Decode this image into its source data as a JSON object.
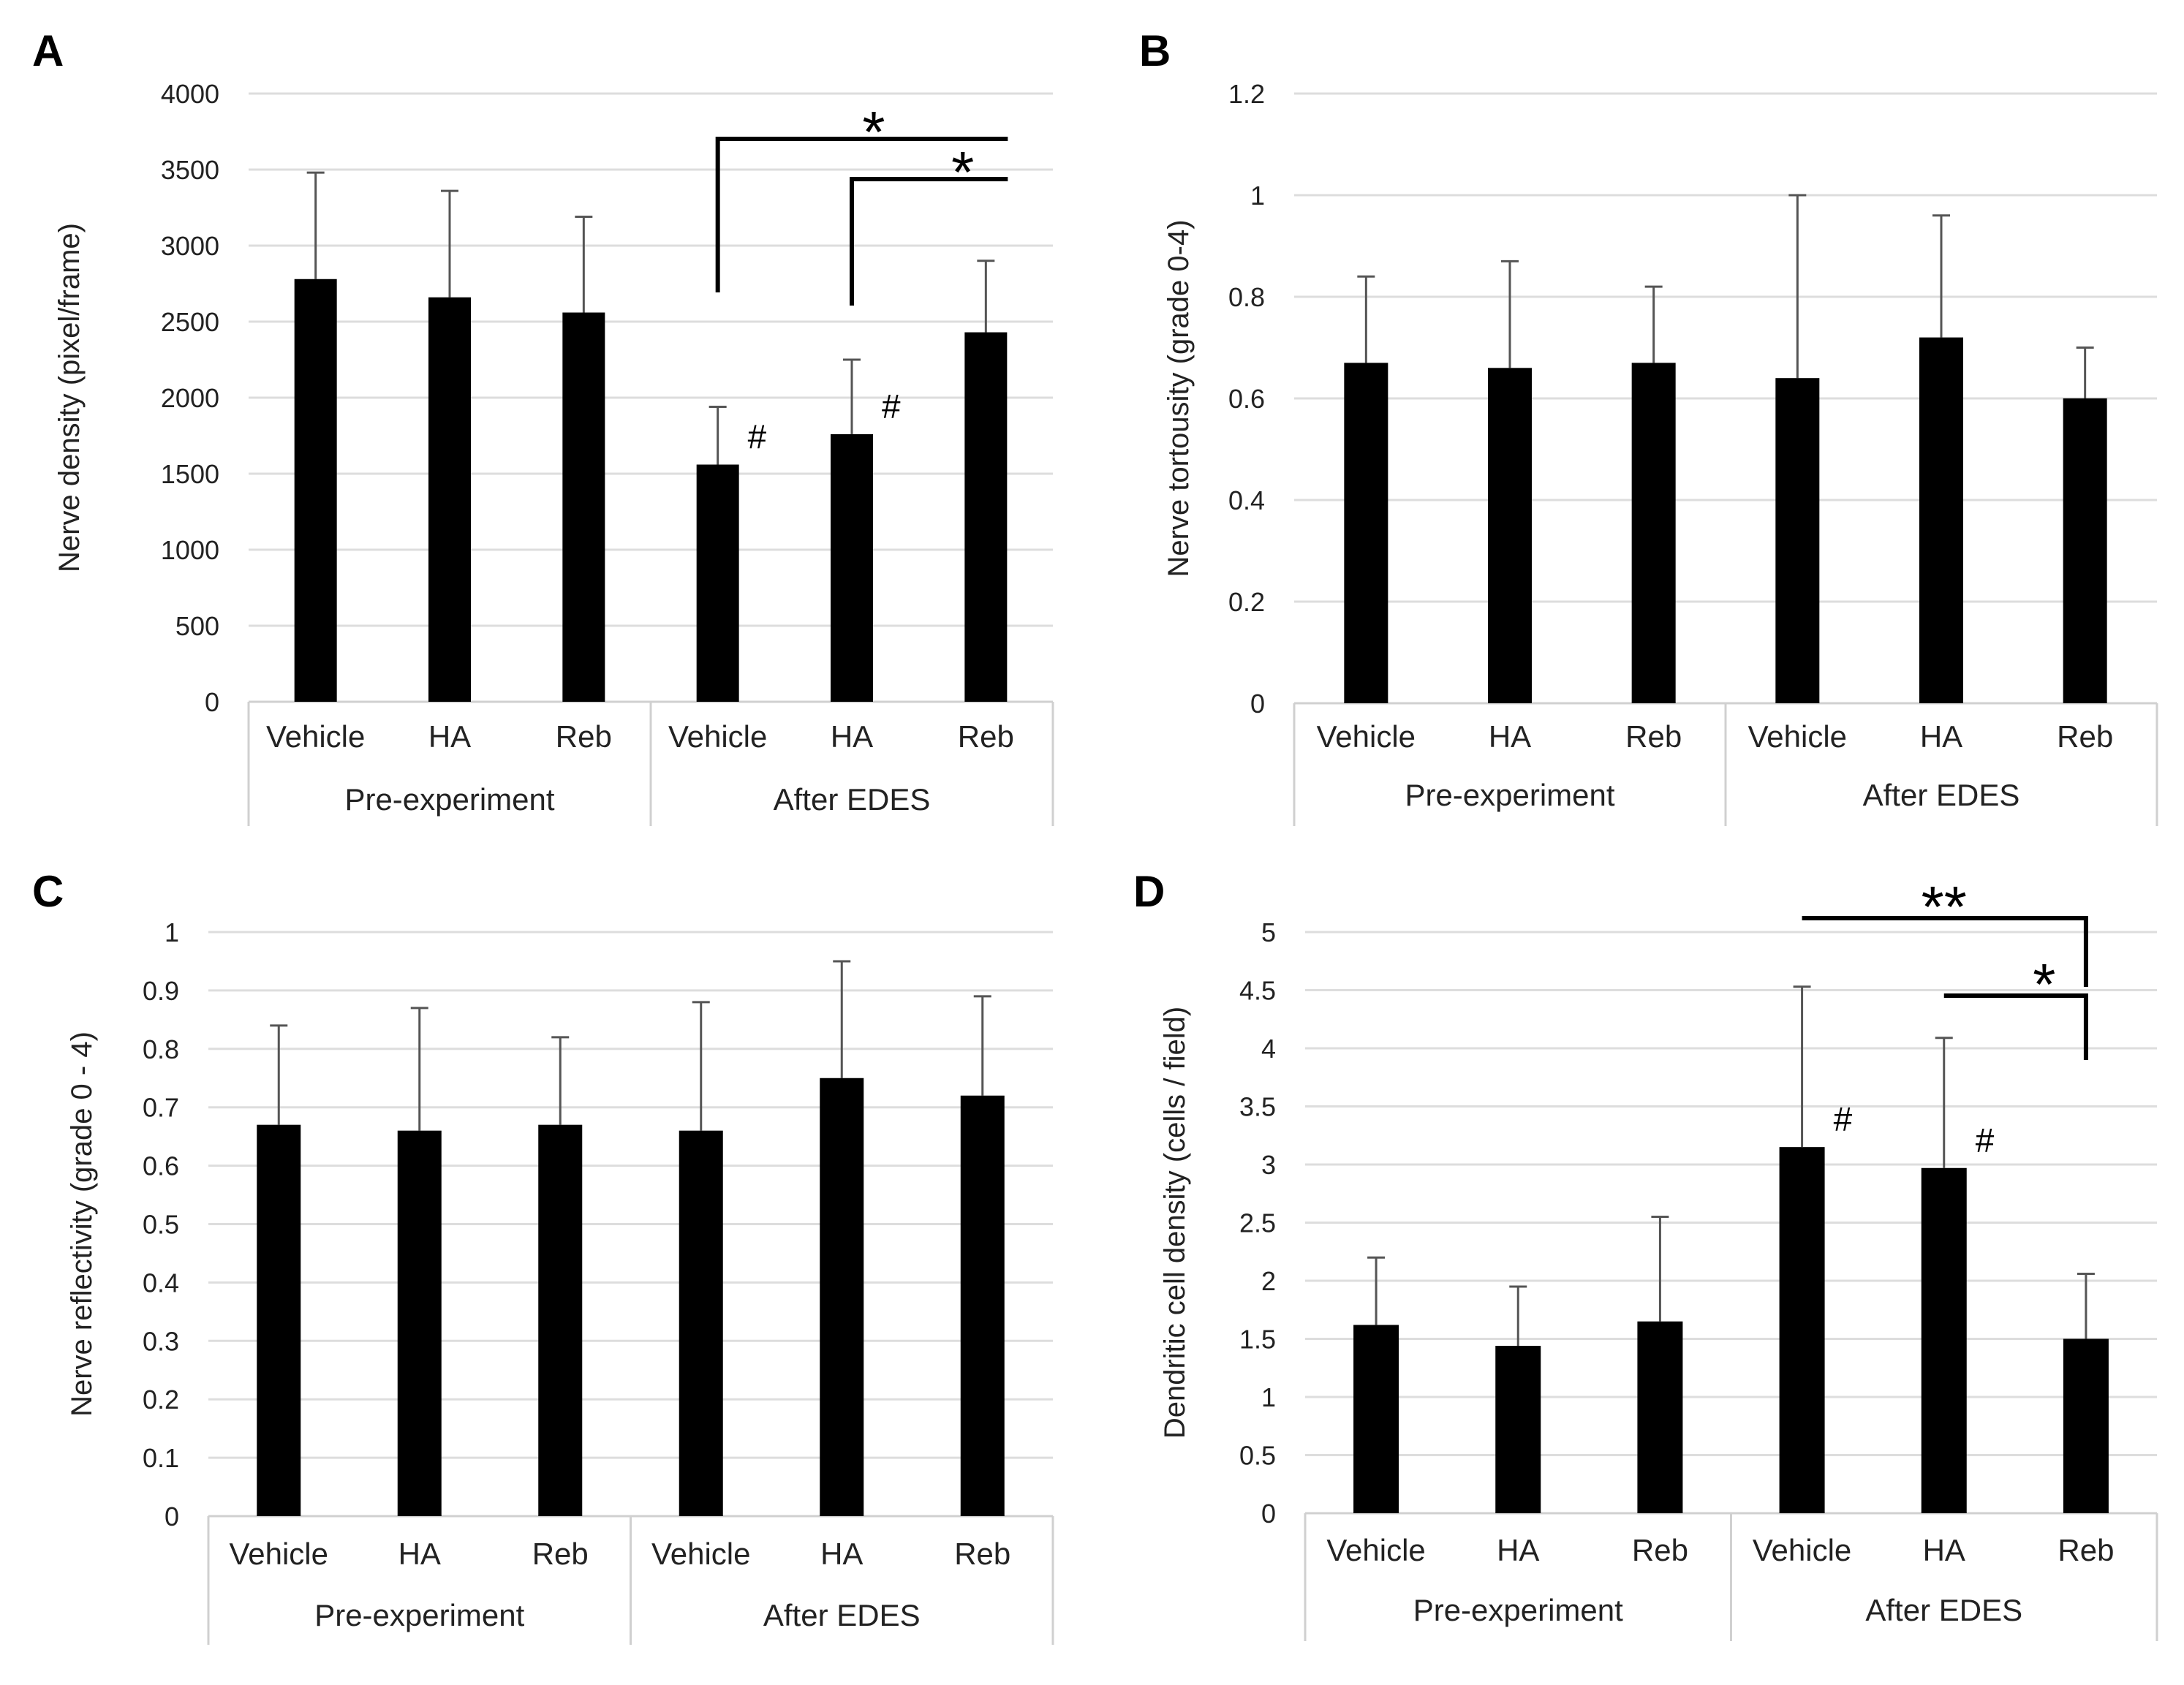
{
  "chart_data": [
    {
      "panel_label": "A",
      "type": "bar",
      "ylabel": "Nerve density (pixel/frame)",
      "ylim": [
        0,
        4000
      ],
      "ticks": [
        "0",
        "500",
        "1000",
        "1500",
        "2000",
        "2500",
        "3000",
        "3500",
        "4000"
      ],
      "tick_values": [
        0,
        500,
        1000,
        1500,
        2000,
        2500,
        3000,
        3500,
        4000
      ],
      "categories": [
        "Vehicle",
        "HA",
        "Reb",
        "Vehicle",
        "HA",
        "Reb"
      ],
      "groups": [
        {
          "label": "Pre-experiment",
          "span": [
            0,
            2
          ]
        },
        {
          "label": "After EDES",
          "span": [
            3,
            5
          ]
        }
      ],
      "values": [
        2780,
        2660,
        2560,
        1560,
        1760,
        2430
      ],
      "errors": [
        700,
        700,
        630,
        380,
        490,
        470
      ],
      "hash_marks": [
        {
          "bar": 3,
          "text": "#"
        },
        {
          "bar": 4,
          "text": "#"
        }
      ],
      "brackets": [
        {
          "from": 3,
          "to": 5,
          "text": "*"
        },
        {
          "from": 4,
          "to": 5,
          "text": "*"
        }
      ],
      "bar_color": "#000000",
      "grid": true
    },
    {
      "panel_label": "B",
      "type": "bar",
      "ylabel": "Nerve tortousity (grade 0-4)",
      "ylim": [
        0,
        1.2
      ],
      "ticks": [
        "0",
        "0.2",
        "0.4",
        "0.6",
        "0.8",
        "1",
        "1.2"
      ],
      "tick_values": [
        0,
        0.2,
        0.4,
        0.6,
        0.8,
        1,
        1.2
      ],
      "categories": [
        "Vehicle",
        "HA",
        "Reb",
        "Vehicle",
        "HA",
        "Reb"
      ],
      "groups": [
        {
          "label": "Pre-experiment",
          "span": [
            0,
            2
          ]
        },
        {
          "label": "After EDES",
          "span": [
            3,
            5
          ]
        }
      ],
      "values": [
        0.67,
        0.66,
        0.67,
        0.64,
        0.72,
        0.6
      ],
      "errors": [
        0.17,
        0.21,
        0.15,
        0.36,
        0.24,
        0.1
      ],
      "hash_marks": [],
      "brackets": [],
      "bar_color": "#000000",
      "grid": true
    },
    {
      "panel_label": "C",
      "type": "bar",
      "ylabel": "Nerve reflectivity (grade 0 - 4)",
      "ylim": [
        0,
        1
      ],
      "ticks": [
        "0",
        "0.1",
        "0.2",
        "0.3",
        "0.4",
        "0.5",
        "0.6",
        "0.7",
        "0.8",
        "0.9",
        "1"
      ],
      "tick_values": [
        0,
        0.1,
        0.2,
        0.3,
        0.4,
        0.5,
        0.6,
        0.7,
        0.8,
        0.9,
        1
      ],
      "categories": [
        "Vehicle",
        "HA",
        "Reb",
        "Vehicle",
        "HA",
        "Reb"
      ],
      "groups": [
        {
          "label": "Pre-experiment",
          "span": [
            0,
            2
          ]
        },
        {
          "label": "After EDES",
          "span": [
            3,
            5
          ]
        }
      ],
      "values": [
        0.67,
        0.66,
        0.67,
        0.66,
        0.75,
        0.72
      ],
      "errors": [
        0.17,
        0.21,
        0.15,
        0.22,
        0.2,
        0.17
      ],
      "hash_marks": [],
      "brackets": [],
      "bar_color": "#000000",
      "grid": true
    },
    {
      "panel_label": "D",
      "type": "bar",
      "ylabel": "Dendritic cell density (cells / field)",
      "ylim": [
        0,
        5
      ],
      "ticks": [
        "0",
        "0.5",
        "1",
        "1.5",
        "2",
        "2.5",
        "3",
        "3.5",
        "4",
        "4.5",
        "5"
      ],
      "tick_values": [
        0,
        0.5,
        1,
        1.5,
        2,
        2.5,
        3,
        3.5,
        4,
        4.5,
        5
      ],
      "categories": [
        "Vehicle",
        "HA",
        "Reb",
        "Vehicle",
        "HA",
        "Reb"
      ],
      "groups": [
        {
          "label": "Pre-experiment",
          "span": [
            0,
            2
          ]
        },
        {
          "label": "After EDES",
          "span": [
            3,
            5
          ]
        }
      ],
      "values": [
        1.62,
        1.44,
        1.65,
        3.15,
        2.97,
        1.5
      ],
      "errors": [
        0.58,
        0.51,
        0.9,
        1.38,
        1.12,
        0.56
      ],
      "hash_marks": [
        {
          "bar": 3,
          "text": "#"
        },
        {
          "bar": 4,
          "text": "#"
        }
      ],
      "brackets": [
        {
          "from": 3,
          "to": 5,
          "text": "**"
        },
        {
          "from": 4,
          "to": 5,
          "text": "*"
        }
      ],
      "bar_color": "#000000",
      "grid": true
    }
  ]
}
